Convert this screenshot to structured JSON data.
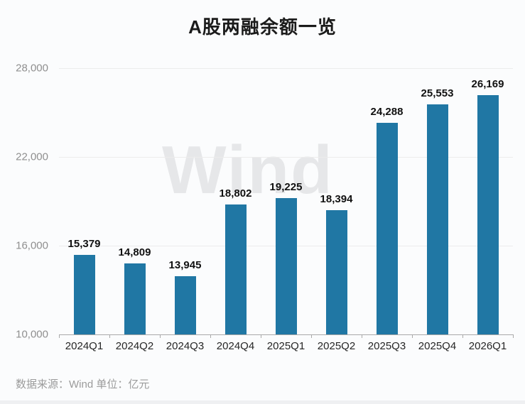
{
  "header": {
    "title": "A股两融余额一览"
  },
  "watermark": {
    "text": "Wind"
  },
  "footer": {
    "source_text": "数据来源：Wind 单位：亿元"
  },
  "chart_data": {
    "type": "bar",
    "title": "A股两融余额一览",
    "categories": [
      "2024Q1",
      "2024Q2",
      "2024Q3",
      "2024Q4",
      "2025Q1",
      "2025Q2",
      "2025Q3",
      "2025Q4",
      "2026Q1"
    ],
    "values": [
      15379,
      14809,
      13945,
      18802,
      19225,
      18394,
      24288,
      25553,
      26169
    ],
    "value_labels": [
      "15,379",
      "14,809",
      "13,945",
      "18,802",
      "19,225",
      "18,394",
      "24,288",
      "25,553",
      "26,169"
    ],
    "ylim": [
      10000,
      28000
    ],
    "yticks": [
      10000,
      16000,
      22000,
      28000
    ],
    "ytick_labels": [
      "10,000",
      "16,000",
      "22,000",
      "28,000"
    ],
    "xlabel": "",
    "ylabel": "",
    "unit": "亿元",
    "source": "Wind",
    "bar_color": "#2077a4",
    "grid": true,
    "legend_position": "none"
  }
}
